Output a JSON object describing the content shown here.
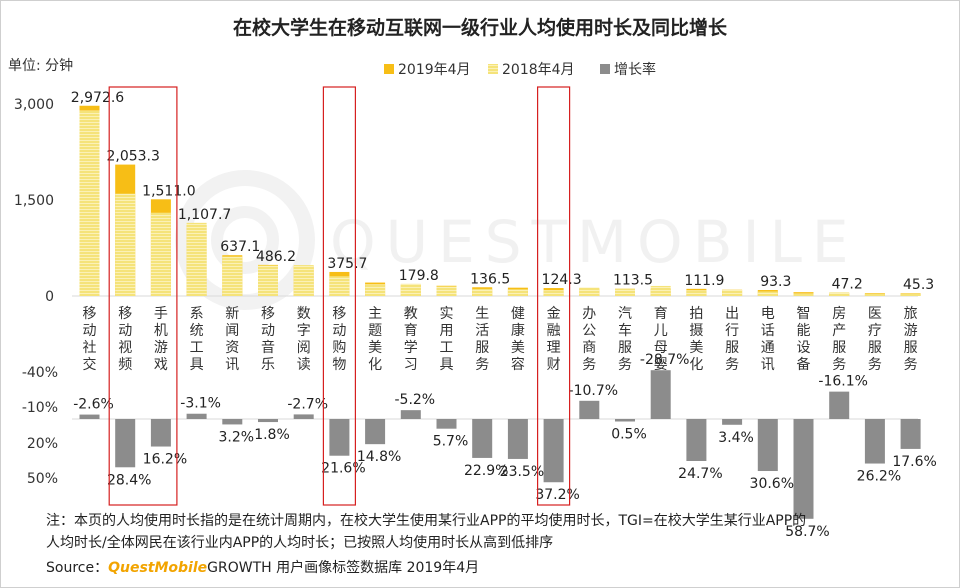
{
  "chart_data": {
    "type": "bar",
    "title": "在校大学生在移动互联网一级行业人均使用时长及同比增长",
    "unit_label": "单位: 分钟",
    "legend": [
      "2019年4月",
      "2018年4月",
      "增长率"
    ],
    "colors": {
      "y2019": "#f7be16",
      "y2018": "#f5e37a",
      "growth": "#8c8c8c",
      "highlight": "#d62020"
    },
    "yticks_top": [
      "3,000",
      "1,500",
      "0"
    ],
    "ylim_top": [
      0,
      3000
    ],
    "yticks_bottom": [
      "-40%",
      "-10%",
      "20%",
      "50%"
    ],
    "categories": [
      "移动社交",
      "移动视频",
      "手机游戏",
      "系统工具",
      "新闻资讯",
      "移动音乐",
      "数字阅读",
      "移动购物",
      "主题美化",
      "教育学习",
      "实用工具",
      "生活服务",
      "健康美容",
      "金融理财",
      "办公商务",
      "汽车服务",
      "育儿母婴",
      "拍摄美化",
      "出行服务",
      "电话通讯",
      "智能设备",
      "房产服务",
      "医疗服务",
      "旅游服务"
    ],
    "series": [
      {
        "name": "2019年4月",
        "values": [
          2972.6,
          2053.3,
          1511.0,
          1107.7,
          637.1,
          486.2,
          470,
          375.7,
          210,
          179.8,
          160,
          136.5,
          130,
          124.3,
          118,
          113.5,
          112,
          111.9,
          98,
          93.3,
          60,
          47.2,
          46,
          45.3
        ]
      },
      {
        "name": "2018年4月",
        "values": [
          2898,
          1599,
          1300,
          1143,
          617,
          478,
          483,
          309,
          183,
          190,
          151,
          111,
          105,
          91,
          132,
          113,
          157,
          90,
          95,
          71,
          38,
          56,
          36,
          38
        ]
      },
      {
        "name": "增长率",
        "values": [
          -2.6,
          28.4,
          16.2,
          -3.1,
          3.2,
          1.8,
          -2.7,
          21.6,
          14.8,
          -5.2,
          5.7,
          22.9,
          23.5,
          37.2,
          -10.7,
          0.5,
          -28.7,
          24.7,
          3.4,
          30.6,
          58.7,
          -16.1,
          26.2,
          17.6
        ]
      }
    ],
    "value_labels": [
      "2,972.6",
      "2,053.3",
      "1,511.0",
      "1,107.7",
      "637.1",
      "486.2",
      "",
      "375.7",
      "",
      "179.8",
      "",
      "136.5",
      "",
      "124.3",
      "",
      "113.5",
      "",
      "111.9",
      "",
      "93.3",
      "",
      "47.2",
      "",
      "45.3"
    ],
    "growth_labels": [
      "-2.6%",
      "28.4%",
      "16.2%",
      "-3.1%",
      "3.2%",
      "1.8%",
      "-2.7%",
      "21.6%",
      "14.8%",
      "-5.2%",
      "5.7%",
      "22.9%",
      "23.5%",
      "37.2%",
      "-10.7%",
      "0.5%",
      "-28.7%",
      "24.7%",
      "3.4%",
      "30.6%",
      "58.7%",
      "-16.1%",
      "26.2%",
      "17.6%"
    ],
    "highlighted": [
      "移动视频",
      "手机游戏",
      "移动购物",
      "金融理财"
    ]
  },
  "footer": {
    "note_line1": "注：本页的人均使用时长指的是在统计周期内，在校大学生使用某行业APP的平均使用时长，TGI=在校大学生某行业APP的",
    "note_line2": "人均时长/全体网民在该行业内APP的人均时长；已按照人均使用时长从高到低排序",
    "source_label": "Source：",
    "source_brand": "QuestMobile",
    "source_rest": "GROWTH 用户画像标签数据库  2019年4月"
  },
  "watermark": "QUESTMOBILE"
}
